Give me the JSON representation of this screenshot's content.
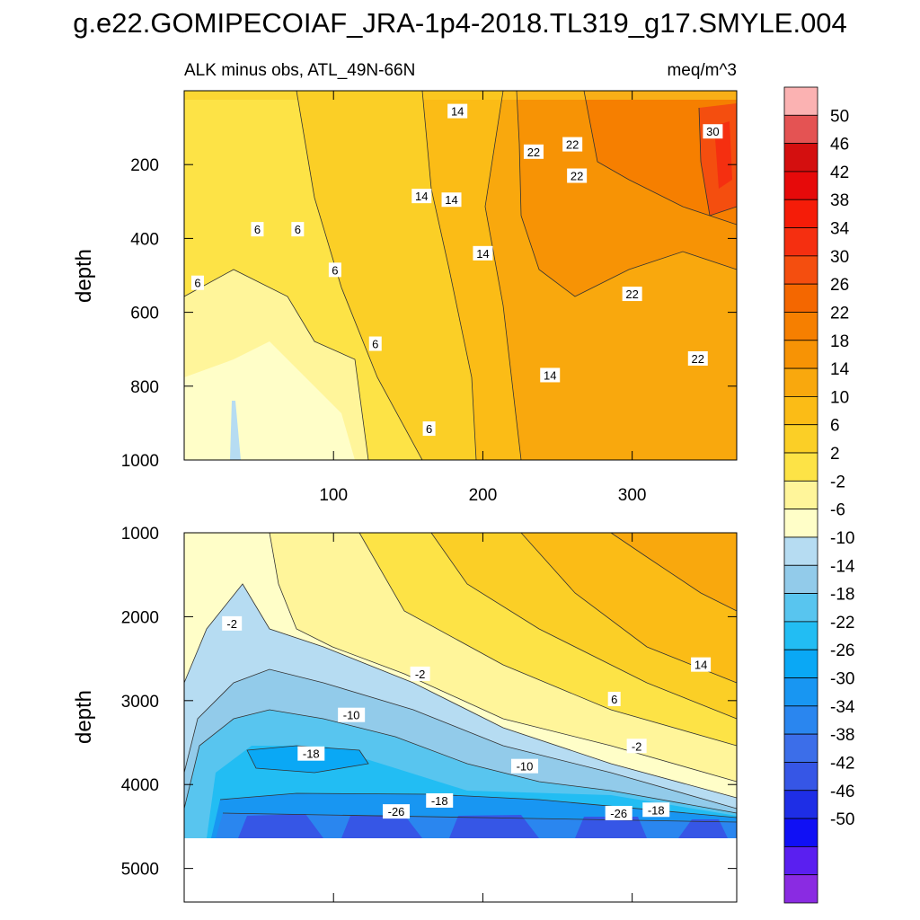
{
  "title": "g.e22.GOMIPECOIAF_JRA-1p4-2018.TL319_g17.SMYLE.004",
  "colors": {
    "palette": [
      "#8a2be2",
      "#5a1ff0",
      "#1010f5",
      "#1e2ee6",
      "#3656e6",
      "#3c6ee9",
      "#2a86ef",
      "#1896f2",
      "#0aa8f5",
      "#22bdf3",
      "#58c5ef",
      "#92cbea",
      "#b6dcf2",
      "#fffec8",
      "#fff59a",
      "#fde346",
      "#fbcf26",
      "#fbbc16",
      "#f9a80d",
      "#f79305",
      "#f67f00",
      "#f46700",
      "#f44e0f",
      "#f52f10",
      "#f51c08",
      "#e60a0a",
      "#d40f0f",
      "#e45353",
      "#fbb2b2"
    ]
  },
  "chart_data": [
    {
      "type": "contour",
      "panel": "upper",
      "left_title": "ALK minus obs, ATL_49N-66N",
      "right_title": "meq/m^3",
      "ylabel": "depth",
      "xlim": [
        0,
        370
      ],
      "ylim": [
        1000,
        0
      ],
      "x_ticks": [
        100,
        200,
        300
      ],
      "y_ticks": [
        200,
        400,
        600,
        800,
        1000
      ],
      "contour_labels": [
        {
          "text": "14",
          "x": 183,
          "depth": 55
        },
        {
          "text": "22",
          "x": 234,
          "depth": 165
        },
        {
          "text": "22",
          "x": 260,
          "depth": 145
        },
        {
          "text": "30",
          "x": 354,
          "depth": 110
        },
        {
          "text": "22",
          "x": 263,
          "depth": 230
        },
        {
          "text": "14",
          "x": 159,
          "depth": 285
        },
        {
          "text": "14",
          "x": 179,
          "depth": 295
        },
        {
          "text": "6",
          "x": 49,
          "depth": 375
        },
        {
          "text": "6",
          "x": 76,
          "depth": 375
        },
        {
          "text": "14",
          "x": 200,
          "depth": 440
        },
        {
          "text": "6",
          "x": 101,
          "depth": 485
        },
        {
          "text": "6",
          "x": 9,
          "depth": 520
        },
        {
          "text": "22",
          "x": 300,
          "depth": 550
        },
        {
          "text": "6",
          "x": 128,
          "depth": 685
        },
        {
          "text": "22",
          "x": 344,
          "depth": 725
        },
        {
          "text": "14",
          "x": 245,
          "depth": 770
        },
        {
          "text": "6",
          "x": 164,
          "depth": 915
        }
      ]
    },
    {
      "type": "contour",
      "panel": "lower",
      "ylabel": "depth",
      "xlim": [
        0,
        370
      ],
      "ylim": [
        5400,
        1000
      ],
      "y_ticks": [
        1000,
        2000,
        3000,
        4000,
        5000
      ],
      "contour_labels": [
        {
          "text": "-2",
          "x": 32,
          "depth": 2080
        },
        {
          "text": "-2",
          "x": 158,
          "depth": 2680
        },
        {
          "text": "14",
          "x": 346,
          "depth": 2570
        },
        {
          "text": "6",
          "x": 288,
          "depth": 2980
        },
        {
          "text": "-10",
          "x": 112,
          "depth": 3170
        },
        {
          "text": "-2",
          "x": 303,
          "depth": 3540
        },
        {
          "text": "-18",
          "x": 85,
          "depth": 3630
        },
        {
          "text": "-10",
          "x": 228,
          "depth": 3780
        },
        {
          "text": "-18",
          "x": 171,
          "depth": 4190
        },
        {
          "text": "-26",
          "x": 142,
          "depth": 4320
        },
        {
          "text": "-26",
          "x": 291,
          "depth": 4340
        },
        {
          "text": "-18",
          "x": 316,
          "depth": 4300
        }
      ]
    },
    {
      "type": "colorbar",
      "labels": [
        "50",
        "46",
        "42",
        "38",
        "34",
        "30",
        "26",
        "22",
        "18",
        "14",
        "10",
        "6",
        "2",
        "-2",
        "-6",
        "-10",
        "-14",
        "-18",
        "-22",
        "-26",
        "-30",
        "-34",
        "-38",
        "-42",
        "-46",
        "-50"
      ]
    }
  ]
}
